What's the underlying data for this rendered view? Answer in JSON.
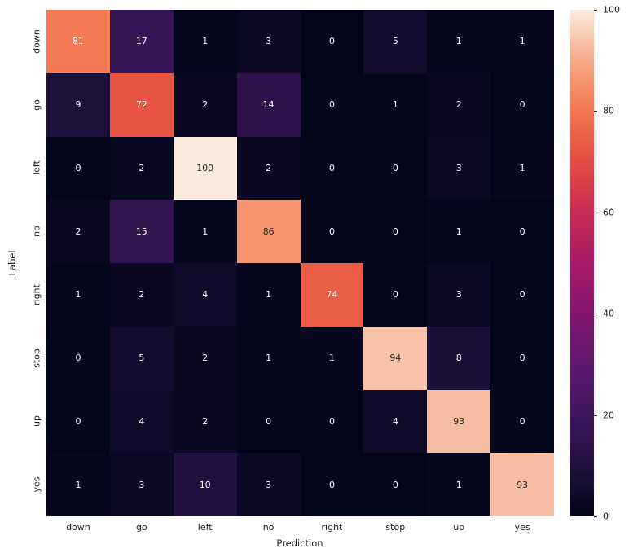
{
  "chart_data": {
    "type": "heatmap",
    "title": "",
    "xlabel": "Prediction",
    "ylabel": "Label",
    "categories_x": [
      "down",
      "go",
      "left",
      "no",
      "right",
      "stop",
      "up",
      "yes"
    ],
    "categories_y": [
      "down",
      "go",
      "left",
      "no",
      "right",
      "stop",
      "up",
      "yes"
    ],
    "matrix": [
      [
        81,
        17,
        1,
        3,
        0,
        5,
        1,
        1
      ],
      [
        9,
        72,
        2,
        14,
        0,
        1,
        2,
        0
      ],
      [
        0,
        2,
        100,
        2,
        0,
        0,
        3,
        1
      ],
      [
        2,
        15,
        1,
        86,
        0,
        0,
        1,
        0
      ],
      [
        1,
        2,
        4,
        1,
        74,
        0,
        3,
        0
      ],
      [
        0,
        5,
        2,
        1,
        1,
        94,
        8,
        0
      ],
      [
        0,
        4,
        2,
        0,
        0,
        4,
        93,
        0
      ],
      [
        1,
        3,
        10,
        3,
        0,
        0,
        1,
        93
      ]
    ],
    "vmin": 0,
    "vmax": 100,
    "colorbar_ticks": [
      0,
      20,
      40,
      60,
      80,
      100
    ],
    "colormap": "rocket",
    "colormap_stops": [
      [
        0.0,
        "#03051B"
      ],
      [
        0.1,
        "#20113E"
      ],
      [
        0.2,
        "#3E165F"
      ],
      [
        0.3,
        "#5F186E"
      ],
      [
        0.4,
        "#821670"
      ],
      [
        0.5,
        "#A71B67"
      ],
      [
        0.6,
        "#CA2C54"
      ],
      [
        0.7,
        "#E44C42"
      ],
      [
        0.8,
        "#F1764D"
      ],
      [
        0.9,
        "#F6A988"
      ],
      [
        1.0,
        "#FAEBDD"
      ]
    ],
    "annotation_dark_text_color": "#262626",
    "annotation_light_text_color": "#ffffff",
    "background_color": "#ffffff",
    "legend_position": "right-colorbar",
    "grid": false
  }
}
